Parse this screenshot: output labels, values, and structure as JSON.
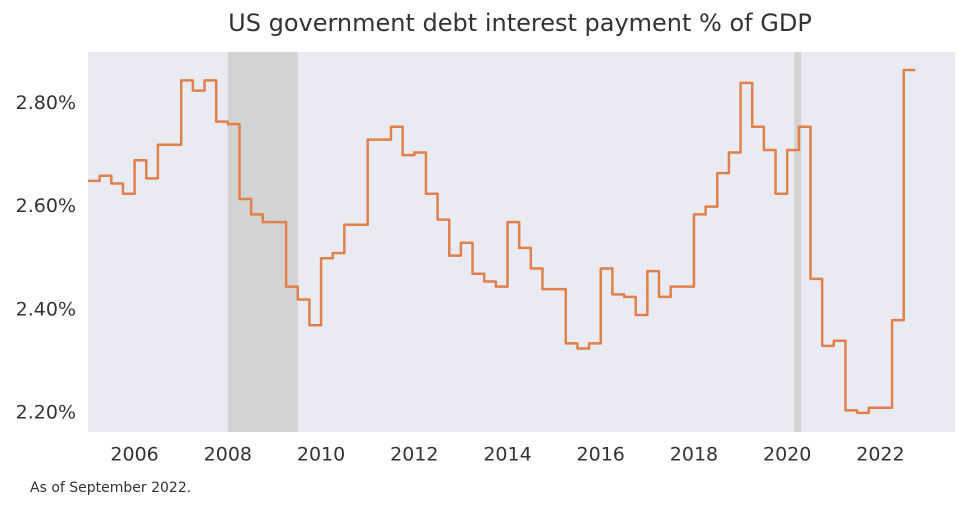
{
  "chart_data": {
    "type": "line",
    "title": "US government debt interest payment % of GDP",
    "note": "As of September 2022.",
    "step": true,
    "line_color": "#e0804a",
    "background": "#eaeaf2",
    "shade_color": "#d3d3d3",
    "shaded_regions": [
      [
        2008.0,
        2009.5
      ],
      [
        2020.15,
        2020.3
      ]
    ],
    "x": [
      2005,
      2005.25,
      2005.5,
      2005.75,
      2006,
      2006.25,
      2006.5,
      2006.75,
      2007,
      2007.25,
      2007.5,
      2007.75,
      2008,
      2008.25,
      2008.5,
      2008.75,
      2009,
      2009.25,
      2009.5,
      2009.75,
      2010,
      2010.25,
      2010.5,
      2010.75,
      2011,
      2011.25,
      2011.5,
      2011.75,
      2012,
      2012.25,
      2012.5,
      2012.75,
      2013,
      2013.25,
      2013.5,
      2013.75,
      2014,
      2014.25,
      2014.5,
      2014.75,
      2015,
      2015.25,
      2015.5,
      2015.75,
      2016,
      2016.25,
      2016.5,
      2016.75,
      2017,
      2017.25,
      2017.5,
      2017.75,
      2018,
      2018.25,
      2018.5,
      2018.75,
      2019,
      2019.25,
      2019.5,
      2019.75,
      2020,
      2020.25,
      2020.5,
      2020.75,
      2021,
      2021.25,
      2021.5,
      2021.75,
      2022,
      2022.25,
      2022.5,
      2022.75
    ],
    "values": [
      2.65,
      2.66,
      2.645,
      2.625,
      2.69,
      2.655,
      2.72,
      2.72,
      2.845,
      2.825,
      2.845,
      2.765,
      2.76,
      2.615,
      2.585,
      2.57,
      2.57,
      2.445,
      2.42,
      2.37,
      2.5,
      2.51,
      2.565,
      2.565,
      2.73,
      2.73,
      2.755,
      2.7,
      2.705,
      2.625,
      2.575,
      2.505,
      2.53,
      2.47,
      2.455,
      2.445,
      2.57,
      2.52,
      2.48,
      2.44,
      2.44,
      2.335,
      2.325,
      2.335,
      2.48,
      2.43,
      2.425,
      2.39,
      2.475,
      2.425,
      2.445,
      2.445,
      2.585,
      2.6,
      2.665,
      2.705,
      2.84,
      2.755,
      2.71,
      2.625,
      2.71,
      2.755,
      2.46,
      2.33,
      2.34,
      2.205,
      2.2,
      2.21,
      2.21,
      2.38,
      2.865,
      2.865
    ],
    "xlim": [
      2005,
      2023.6
    ],
    "xticks": [
      2006,
      2008,
      2010,
      2012,
      2014,
      2016,
      2018,
      2020,
      2022
    ],
    "ylim": [
      2.163,
      2.9
    ],
    "yticks": [
      {
        "value": 2.2,
        "label": "2.20%"
      },
      {
        "value": 2.4,
        "label": "2.40%"
      },
      {
        "value": 2.6,
        "label": "2.60%"
      },
      {
        "value": 2.8,
        "label": "2.80%"
      }
    ]
  }
}
